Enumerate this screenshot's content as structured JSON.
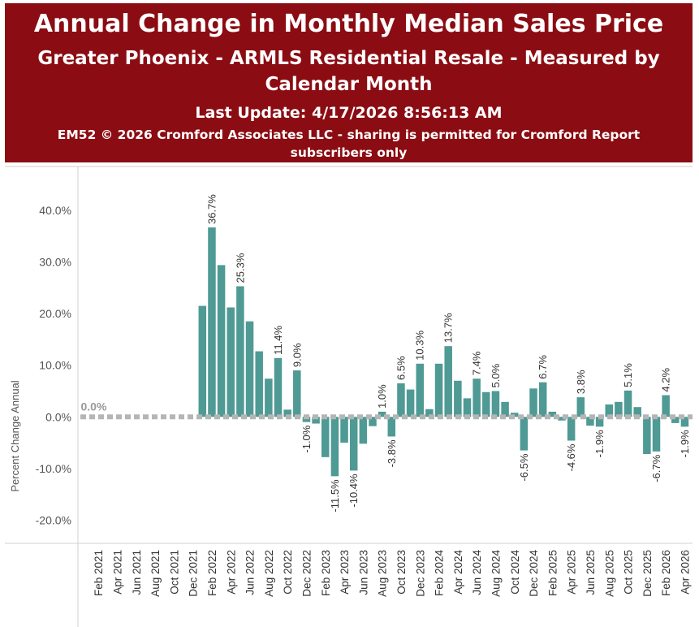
{
  "header": {
    "title": "Annual Change in Monthly Median Sales Price",
    "subtitle": "Greater Phoenix - ARMLS Residential Resale - Measured by Calendar Month",
    "last_update": "Last Update: 4/17/2026 8:56:13 AM",
    "copyright": "EM52 © 2026 Cromford Associates LLC - sharing is permitted for Cromford Report subscribers only"
  },
  "colors": {
    "bar": "#4f9a94",
    "zero_line": "#b5b5b5",
    "header_bg": "#8b0c12"
  },
  "chart_data": {
    "type": "bar",
    "ylabel": "Percent Change Annual",
    "ylim": [
      -24.5,
      48.5
    ],
    "yticks": [
      -20,
      -10,
      0,
      10,
      20,
      30,
      40
    ],
    "ytick_labels": [
      "-20.0%",
      "-10.0%",
      "0.0%",
      "10.0%",
      "20.0%",
      "30.0%",
      "40.0%"
    ],
    "zero_label": "0.0%",
    "xtick_labels": [
      "Feb 2021",
      "Apr 2021",
      "Jun 2021",
      "Aug 2021",
      "Oct 2021",
      "Dec 2021",
      "Feb 2022",
      "Apr 2022",
      "Jun 2022",
      "Aug 2022",
      "Oct 2022",
      "Dec 2022",
      "Feb 2023",
      "Apr 2023",
      "Jun 2023",
      "Aug 2023",
      "Oct 2023",
      "Dec 2023",
      "Feb 2024",
      "Apr 2024",
      "Jun 2024",
      "Aug 2024",
      "Oct 2024",
      "Dec 2024",
      "Feb 2025",
      "Apr 2025",
      "Jun 2025",
      "Aug 2025",
      "Oct 2025",
      "Dec 2025",
      "Feb 2026",
      "Apr 2026"
    ],
    "months": [
      "Jan 2021",
      "Feb 2021",
      "Mar 2021",
      "Apr 2021",
      "May 2021",
      "Jun 2021",
      "Jul 2021",
      "Aug 2021",
      "Sep 2021",
      "Oct 2021",
      "Nov 2021",
      "Dec 2021",
      "Jan 2022",
      "Feb 2022",
      "Mar 2022",
      "Apr 2022",
      "May 2022",
      "Jun 2022",
      "Jul 2022",
      "Aug 2022",
      "Sep 2022",
      "Oct 2022",
      "Nov 2022",
      "Dec 2022",
      "Jan 2023",
      "Feb 2023",
      "Mar 2023",
      "Apr 2023",
      "May 2023",
      "Jun 2023",
      "Jul 2023",
      "Aug 2023",
      "Sep 2023",
      "Oct 2023",
      "Nov 2023",
      "Dec 2023",
      "Jan 2024",
      "Feb 2024",
      "Mar 2024",
      "Apr 2024",
      "May 2024",
      "Jun 2024",
      "Jul 2024",
      "Aug 2024",
      "Sep 2024",
      "Oct 2024",
      "Nov 2024",
      "Dec 2024",
      "Jan 2025",
      "Feb 2025",
      "Mar 2025",
      "Apr 2025",
      "May 2025",
      "Jun 2025",
      "Jul 2025",
      "Aug 2025",
      "Sep 2025",
      "Oct 2025",
      "Nov 2025",
      "Dec 2025",
      "Jan 2026",
      "Feb 2026",
      "Mar 2026",
      "Apr 2026"
    ],
    "values": [
      0,
      0,
      0,
      0,
      0,
      0,
      0,
      0,
      0,
      0,
      0,
      0,
      21.5,
      36.7,
      29.4,
      21.2,
      25.3,
      18.5,
      12.7,
      7.4,
      11.4,
      1.4,
      9.0,
      -1.0,
      -1.3,
      -7.8,
      -11.5,
      -5.0,
      -10.4,
      -5.2,
      -1.8,
      1.0,
      -3.8,
      6.5,
      5.3,
      10.3,
      1.5,
      10.3,
      13.7,
      7.0,
      3.6,
      7.4,
      4.8,
      5.0,
      2.9,
      0.8,
      -6.5,
      5.5,
      6.7,
      1.0,
      -0.7,
      -4.6,
      3.8,
      -1.7,
      -1.9,
      2.4,
      2.9,
      5.1,
      1.9,
      -7.2,
      -6.7,
      4.2,
      -1.2,
      -1.9
    ],
    "data_labels": [
      {
        "index": 13,
        "text": "36.7%"
      },
      {
        "index": 16,
        "text": "25.3%"
      },
      {
        "index": 20,
        "text": "11.4%"
      },
      {
        "index": 22,
        "text": "9.0%"
      },
      {
        "index": 23,
        "text": "-1.0%"
      },
      {
        "index": 26,
        "text": "-11.5%"
      },
      {
        "index": 28,
        "text": "-10.4%"
      },
      {
        "index": 31,
        "text": "1.0%"
      },
      {
        "index": 32,
        "text": "-3.8%"
      },
      {
        "index": 33,
        "text": "6.5%"
      },
      {
        "index": 35,
        "text": "10.3%"
      },
      {
        "index": 38,
        "text": "13.7%"
      },
      {
        "index": 41,
        "text": "7.4%"
      },
      {
        "index": 43,
        "text": "5.0%"
      },
      {
        "index": 46,
        "text": "-6.5%"
      },
      {
        "index": 48,
        "text": "6.7%"
      },
      {
        "index": 51,
        "text": "-4.6%"
      },
      {
        "index": 52,
        "text": "3.8%"
      },
      {
        "index": 54,
        "text": "-1.9%"
      },
      {
        "index": 57,
        "text": "5.1%"
      },
      {
        "index": 60,
        "text": "-6.7%"
      },
      {
        "index": 61,
        "text": "4.2%"
      },
      {
        "index": 63,
        "text": "-1.9%"
      }
    ]
  }
}
